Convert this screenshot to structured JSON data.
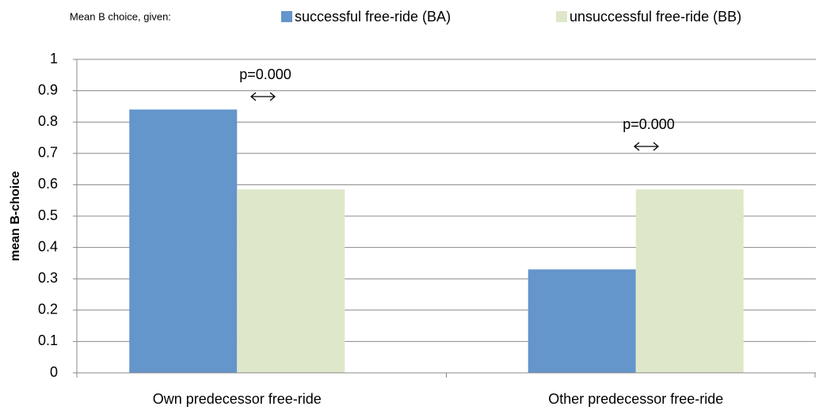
{
  "chart_data": {
    "type": "bar",
    "legend_title": "Mean B choice, given:",
    "y_label": "mean B-choice",
    "categories": [
      "Own predecessor free-ride",
      "Other predecessor free-ride"
    ],
    "series": [
      {
        "name": "successful free-ride (BA)",
        "color": "#6495cb",
        "values": [
          0.84,
          0.33
        ]
      },
      {
        "name": "unsuccessful free-ride (BB)",
        "color": "#dfe7ca",
        "values": [
          0.585,
          0.585
        ]
      }
    ],
    "annotations": [
      "p=0.000",
      "p=0.000"
    ],
    "ylim": [
      0,
      1
    ],
    "yticks": [
      0,
      0.1,
      0.2,
      0.3,
      0.4,
      0.5,
      0.6,
      0.7,
      0.8,
      0.9,
      1
    ],
    "grid": true
  }
}
